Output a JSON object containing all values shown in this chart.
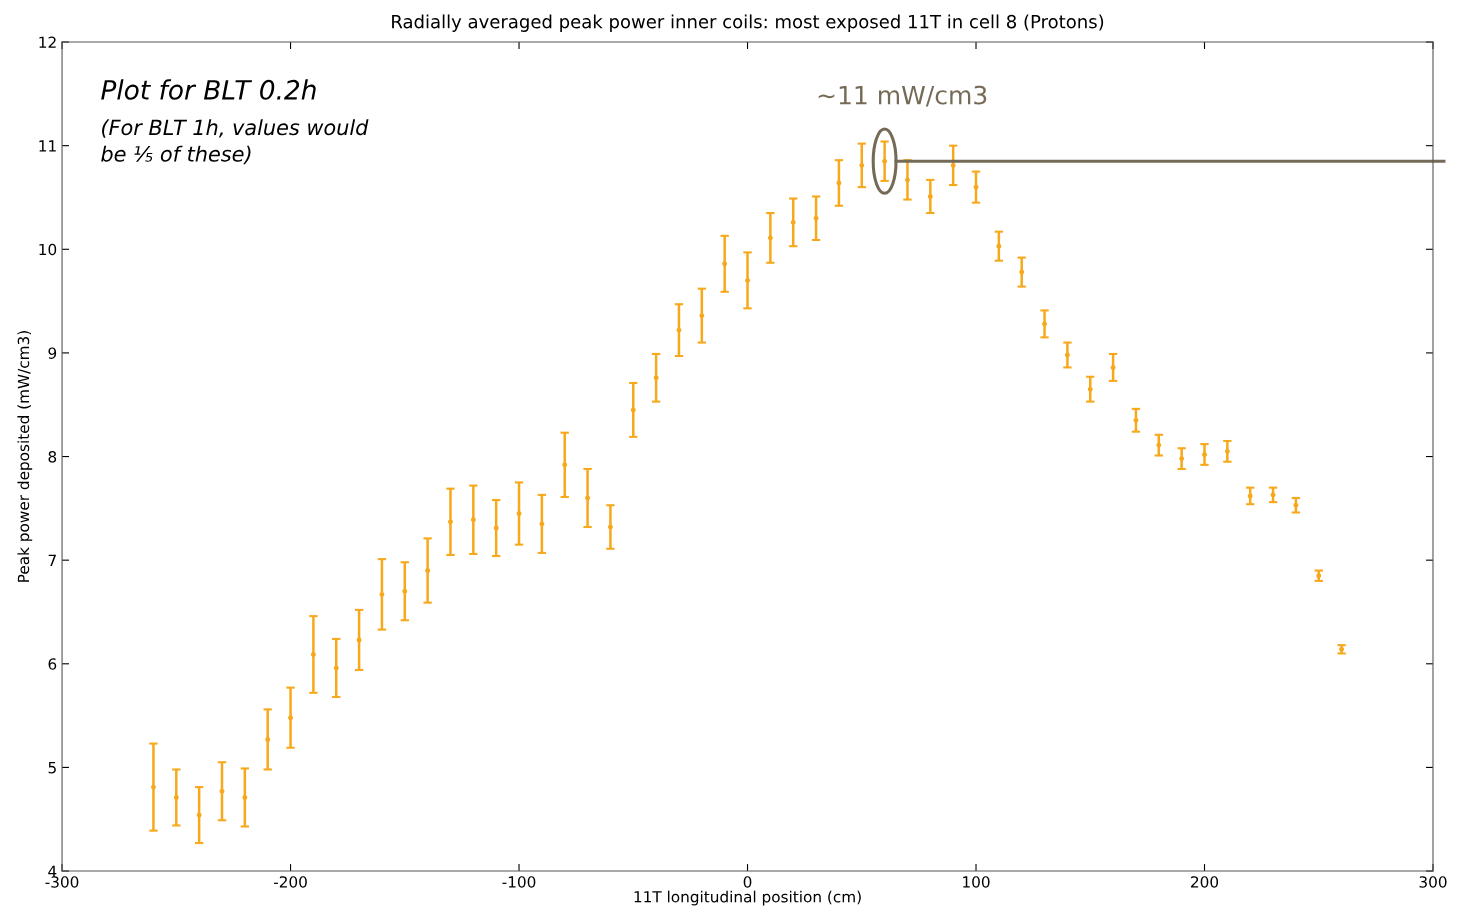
{
  "chart_data": {
    "type": "scatter",
    "title": "Radially averaged peak power inner coils: most exposed 11T in cell 8 (Protons)",
    "xlabel": "11T longitudinal position (cm)",
    "ylabel": "Peak power deposited (mW/cm3)",
    "annotations": [
      "Plot for BLT 0.2h",
      "(For BLT 1h, values would\nbe ⅕ of these)",
      {
        "text": "~11 mW/cm3",
        "x": 60,
        "y": 10.85
      }
    ],
    "x": [
      -260,
      -250,
      -240,
      -230,
      -220,
      -210,
      -200,
      -190,
      -180,
      -170,
      -160,
      -150,
      -140,
      -130,
      -120,
      -110,
      -100,
      -90,
      -80,
      -70,
      -60,
      -50,
      -40,
      -30,
      -20,
      -10,
      0,
      10,
      20,
      30,
      40,
      50,
      60,
      70,
      80,
      90,
      100,
      110,
      120,
      130,
      140,
      150,
      160,
      170,
      180,
      190,
      200,
      210,
      220,
      230,
      240,
      250,
      260
    ],
    "series": [
      {
        "color": "#f7a81b",
        "values": [
          4.81,
          4.71,
          4.54,
          4.77,
          4.71,
          5.27,
          5.48,
          6.09,
          5.96,
          6.23,
          6.67,
          6.7,
          6.9,
          7.37,
          7.39,
          7.31,
          7.45,
          7.35,
          7.92,
          7.6,
          7.32,
          8.45,
          8.76,
          9.22,
          9.36,
          9.86,
          9.7,
          10.11,
          10.26,
          10.3,
          10.64,
          10.81,
          10.85,
          10.67,
          10.51,
          10.81,
          10.6,
          10.03,
          9.78,
          9.28,
          8.98,
          8.65,
          8.86,
          8.35,
          8.11,
          7.98,
          8.02,
          8.05,
          7.62,
          7.63,
          7.53,
          6.85,
          6.14
        ],
        "errors": [
          0.42,
          0.27,
          0.27,
          0.28,
          0.28,
          0.29,
          0.29,
          0.37,
          0.28,
          0.29,
          0.34,
          0.28,
          0.31,
          0.32,
          0.33,
          0.27,
          0.3,
          0.28,
          0.31,
          0.28,
          0.21,
          0.26,
          0.23,
          0.25,
          0.26,
          0.27,
          0.27,
          0.24,
          0.23,
          0.21,
          0.22,
          0.21,
          0.19,
          0.19,
          0.16,
          0.19,
          0.15,
          0.14,
          0.14,
          0.13,
          0.12,
          0.12,
          0.13,
          0.11,
          0.1,
          0.1,
          0.1,
          0.1,
          0.08,
          0.07,
          0.07,
          0.05,
          0.04
        ]
      }
    ],
    "xlim": [
      -300,
      300
    ],
    "xticks": [
      -300,
      -200,
      -100,
      0,
      100,
      200,
      300
    ],
    "ylim": [
      4,
      12
    ],
    "yticks": [
      4,
      5,
      6,
      7,
      8,
      9,
      10,
      11,
      12
    ],
    "grid": false,
    "marker": "circle"
  }
}
